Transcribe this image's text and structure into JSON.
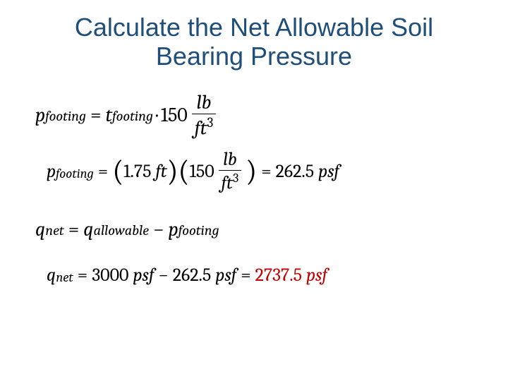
{
  "title_color": "#1f4e79",
  "text_color": "#000000",
  "final_color": "#c00000",
  "background_color": "#ffffff",
  "title_line1": "Calculate the Net Allowable Soil",
  "title_line2": "Bearing Pressure",
  "title_fontsize": 36,
  "eq_fontsize_main": 28,
  "eq_fontsize_sub": 26,
  "eq1": {
    "lhs_var": "p",
    "lhs_sub": "footing",
    "rhs_var": "t",
    "rhs_sub": "footing",
    "coeff": "150",
    "unit_num": "lb",
    "unit_den_base": "ft",
    "unit_den_exp": "3"
  },
  "eq2": {
    "lhs_var": "p",
    "lhs_sub": "footing",
    "t_value": "1.75",
    "t_unit": "ft",
    "coeff": "150",
    "unit_num": "lb",
    "unit_den_base": "ft",
    "unit_den_exp": "3",
    "result_value": "262.5",
    "result_unit": "psf"
  },
  "eq3": {
    "lhs_var": "q",
    "lhs_sub": "net",
    "r1_var": "q",
    "r1_sub": "allowable",
    "r2_var": "p",
    "r2_sub": "footing"
  },
  "eq4": {
    "lhs_var": "q",
    "lhs_sub": "net",
    "a_value": "3000",
    "a_unit": "psf",
    "b_value": "262.5",
    "b_unit": "psf",
    "result_value": "2737.5",
    "result_unit": "psf"
  }
}
